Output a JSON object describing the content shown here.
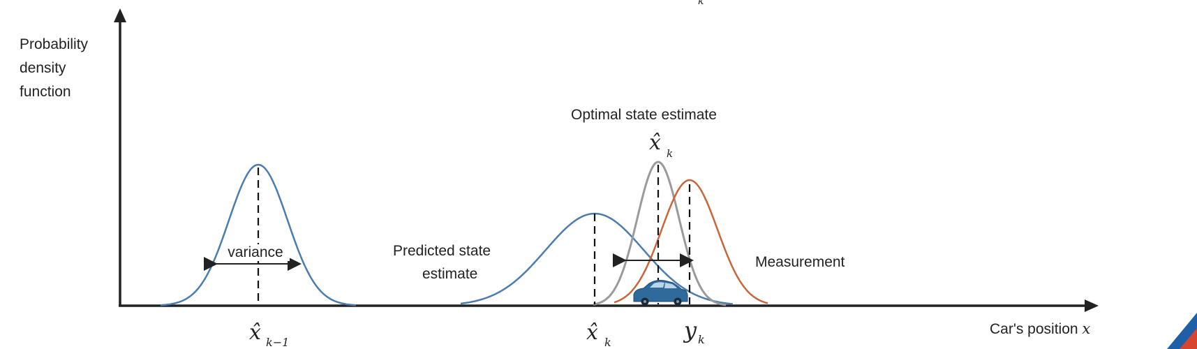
{
  "y_axis_label": [
    "Probability",
    "density",
    "function"
  ],
  "x_axis_label": "Car's position",
  "x_axis_symbol": "x",
  "curves": {
    "previous": {
      "mean_symbol": "x̂",
      "mean_subscript": "k−1",
      "width_label": "variance",
      "color": "#4a7cb0"
    },
    "predicted": {
      "label_lines": [
        "Predicted state",
        "estimate"
      ],
      "mean_symbol": "x̂",
      "mean_subscript": "k",
      "color": "#4a7cb0"
    },
    "optimal": {
      "label": "Optimal state estimate",
      "mean_symbol": "x̂",
      "mean_subscript": "k",
      "color": "#9a9a9a"
    },
    "measurement": {
      "label": "Measurement",
      "mean_symbol": "y",
      "mean_subscript": "k",
      "color": "#c8663a"
    }
  },
  "top_cropped_subscript": "k",
  "car_icon": "car-icon",
  "colors": {
    "axis": "#222222",
    "car": "#2f6a9a"
  }
}
